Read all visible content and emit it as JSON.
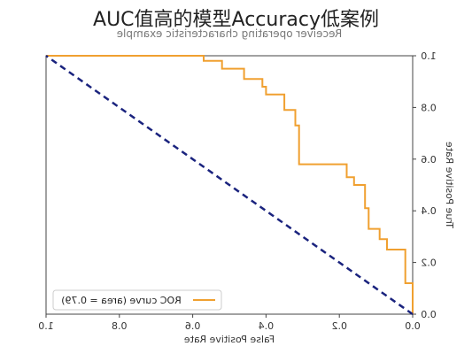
{
  "header": {
    "title": "AUC值高的模型Accuracy低案例"
  },
  "chart_data": {
    "type": "line",
    "title": "Receiver operating characteristic example",
    "xlabel": "False Positive Rate",
    "ylabel": "True Positive Rate",
    "xlim": [
      0.0,
      1.0
    ],
    "ylim": [
      0.0,
      1.0
    ],
    "x_reversed": true,
    "y_axis_side": "right",
    "text_mirrored": true,
    "xticks": [
      "0.0",
      "0.2",
      "0.4",
      "0.6",
      "0.8",
      "1.0"
    ],
    "yticks": [
      "0.0",
      "0.2",
      "0.4",
      "0.6",
      "0.8",
      "1.0"
    ],
    "legend": {
      "placement": "bottom-right",
      "entries": [
        "ROC curve (area = 0.79)"
      ]
    },
    "series": [
      {
        "name": "ROC curve (area = 0.79)",
        "color": "#f0a030",
        "style": "solid",
        "x": [
          0.0,
          0.0,
          0.02,
          0.02,
          0.07,
          0.07,
          0.09,
          0.09,
          0.12,
          0.12,
          0.13,
          0.13,
          0.16,
          0.16,
          0.18,
          0.18,
          0.31,
          0.31,
          0.32,
          0.32,
          0.35,
          0.35,
          0.4,
          0.4,
          0.41,
          0.41,
          0.46,
          0.46,
          0.52,
          0.52,
          0.57,
          0.57,
          1.0
        ],
        "y": [
          0.0,
          0.12,
          0.12,
          0.25,
          0.25,
          0.29,
          0.29,
          0.33,
          0.33,
          0.41,
          0.41,
          0.5,
          0.5,
          0.53,
          0.53,
          0.58,
          0.58,
          0.73,
          0.73,
          0.79,
          0.79,
          0.85,
          0.85,
          0.88,
          0.88,
          0.91,
          0.91,
          0.95,
          0.95,
          0.98,
          0.98,
          1.0,
          1.0
        ]
      },
      {
        "name": "",
        "color": "#1a237e",
        "style": "dashed",
        "x": [
          0.0,
          1.0
        ],
        "y": [
          0.0,
          1.0
        ]
      }
    ]
  }
}
